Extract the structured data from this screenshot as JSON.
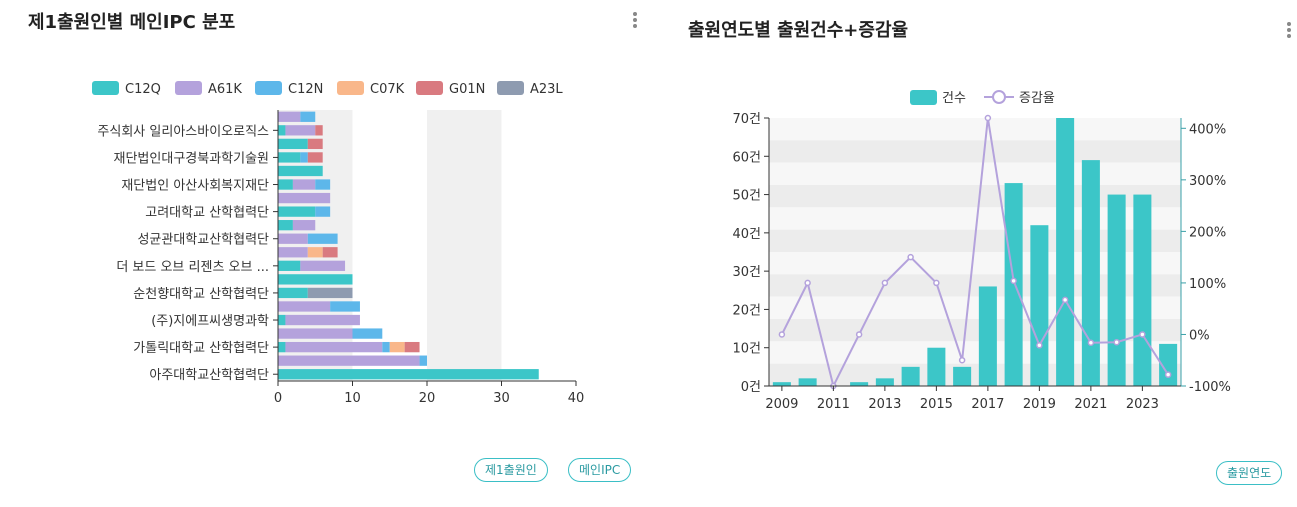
{
  "left": {
    "title": "제1출원인별 메인IPC 분포",
    "chips": [
      "제1출원인",
      "메인IPC"
    ],
    "chart_data": {
      "type": "bar",
      "orientation": "horizontal",
      "stacked": true,
      "categories": [
        "아주대학교산학협력단",
        "",
        "가톨릭대학교 산학협력단",
        "",
        "(주)지에프씨생명과학",
        "",
        "순천향대학교 산학협력단",
        "",
        "더 보드 오브 리젠츠 오브 ...",
        "",
        "성균관대학교산학협력단",
        "",
        "고려대학교 산학협력단",
        "",
        "재단법인 아산사회복지재단",
        "",
        "재단법인대구경북과학기술원",
        "",
        "주식회사 일리아스바이오로직스",
        ""
      ],
      "series": [
        {
          "name": "C12Q",
          "values": [
            35,
            0,
            1,
            0,
            1,
            0,
            4,
            10,
            3,
            0,
            0,
            2,
            5,
            0,
            2,
            6,
            3,
            4,
            1,
            0
          ]
        },
        {
          "name": "A61K",
          "values": [
            0,
            19,
            13,
            10,
            10,
            7,
            0,
            0,
            6,
            4,
            4,
            3,
            0,
            7,
            3,
            0,
            0,
            0,
            4,
            3
          ]
        },
        {
          "name": "C12N",
          "values": [
            0,
            1,
            1,
            4,
            0,
            4,
            0,
            0,
            0,
            0,
            4,
            0,
            2,
            0,
            2,
            0,
            1,
            0,
            0,
            2
          ]
        },
        {
          "name": "C07K",
          "values": [
            0,
            0,
            2,
            0,
            0,
            0,
            0,
            0,
            0,
            2,
            0,
            0,
            0,
            0,
            0,
            0,
            0,
            0,
            0,
            0
          ]
        },
        {
          "name": "G01N",
          "values": [
            0,
            0,
            2,
            0,
            0,
            0,
            0,
            0,
            0,
            2,
            0,
            0,
            0,
            0,
            0,
            0,
            2,
            2,
            1,
            0
          ]
        },
        {
          "name": "A23L",
          "values": [
            0,
            0,
            0,
            0,
            0,
            0,
            6,
            0,
            0,
            0,
            0,
            0,
            0,
            0,
            0,
            0,
            0,
            0,
            0,
            0
          ]
        }
      ],
      "xlim": [
        0,
        40
      ],
      "xticks": [
        "0",
        "10",
        "20",
        "30",
        "40"
      ],
      "legend": "top",
      "colors": {
        "C12Q": "#3cc6c8",
        "A61K": "#b4a2dc",
        "C12N": "#5db7ea",
        "C07K": "#f9b78a",
        "G01N": "#d97a80",
        "A23L": "#8e9bb0"
      }
    }
  },
  "right": {
    "title": "출원연도별 출원건수+증감율",
    "chips": [
      "출원연도"
    ],
    "chart_data": {
      "type": "bar",
      "x": [
        2009,
        2010,
        2011,
        2012,
        2013,
        2014,
        2015,
        2016,
        2017,
        2018,
        2019,
        2020,
        2021,
        2022,
        2023,
        2024
      ],
      "xticks": [
        "2009",
        "2011",
        "2013",
        "2015",
        "2017",
        "2019",
        "2021",
        "2023"
      ],
      "series": [
        {
          "name": "건수",
          "type": "bar",
          "axis": "left",
          "values": [
            1,
            2,
            0,
            1,
            2,
            5,
            10,
            5,
            26,
            53,
            42,
            70,
            59,
            50,
            50,
            11
          ]
        },
        {
          "name": "증감율",
          "type": "line",
          "axis": "right",
          "values": [
            0,
            100,
            -100,
            0,
            100,
            150,
            100,
            -50,
            420,
            104,
            -21,
            67,
            -16,
            -15,
            0,
            -78
          ]
        }
      ],
      "ylim_left": [
        0,
        70
      ],
      "yticks_left": [
        "0건",
        "10건",
        "20건",
        "30건",
        "40건",
        "50건",
        "60건",
        "70건"
      ],
      "ylim_right": [
        -100,
        420
      ],
      "yticks_right": [
        "-100%",
        "0%",
        "100%",
        "200%",
        "300%",
        "400%"
      ],
      "legend": "top",
      "colors": {
        "bar": "#3cc6c8",
        "line": "#b4a2dc"
      }
    }
  }
}
